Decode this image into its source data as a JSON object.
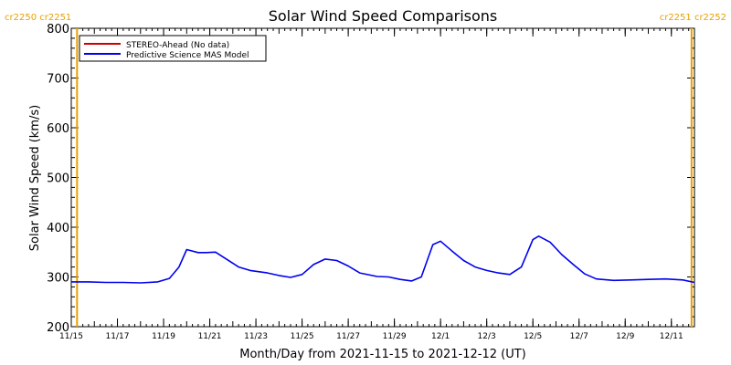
{
  "chart_data": {
    "type": "line",
    "title": "Solar Wind Speed Comparisons",
    "xlabel": "Month/Day from 2021-11-15 to 2021-12-12 (UT)",
    "ylabel": "Solar Wind Speed (km/s)",
    "ylim": [
      200,
      800
    ],
    "yticks": [
      200,
      300,
      400,
      500,
      600,
      700,
      800
    ],
    "xlim": [
      "2021-11-15",
      "2021-12-12"
    ],
    "xticks": [
      {
        "date": "2021-11-15",
        "label": "11/15"
      },
      {
        "date": "2021-11-17",
        "label": "11/17"
      },
      {
        "date": "2021-11-19",
        "label": "11/19"
      },
      {
        "date": "2021-11-21",
        "label": "11/21"
      },
      {
        "date": "2021-11-23",
        "label": "11/23"
      },
      {
        "date": "2021-11-25",
        "label": "11/25"
      },
      {
        "date": "2021-11-27",
        "label": "11/27"
      },
      {
        "date": "2021-11-29",
        "label": "11/29"
      },
      {
        "date": "2021-12-01",
        "label": "12/1"
      },
      {
        "date": "2021-12-03",
        "label": "12/3"
      },
      {
        "date": "2021-12-05",
        "label": "12/5"
      },
      {
        "date": "2021-12-07",
        "label": "12/7"
      },
      {
        "date": "2021-12-09",
        "label": "12/9"
      },
      {
        "date": "2021-12-11",
        "label": "12/11"
      }
    ],
    "legend_position": "top-left",
    "series": [
      {
        "name": "STEREO-Ahead (No data)",
        "color": "#cc0000",
        "x": [],
        "values": []
      },
      {
        "name": "Predictive Science MAS Model",
        "color": "#0000ee",
        "x": [
          "2021-11-15 00:00",
          "2021-11-15 18:00",
          "2021-11-16 12:00",
          "2021-11-17 06:00",
          "2021-11-18 00:00",
          "2021-11-18 18:00",
          "2021-11-19 06:00",
          "2021-11-19 16:00",
          "2021-11-20 00:00",
          "2021-11-20 12:00",
          "2021-11-20 20:00",
          "2021-11-21 06:00",
          "2021-11-21 18:00",
          "2021-11-22 06:00",
          "2021-11-22 18:00",
          "2021-11-23 12:00",
          "2021-11-24 00:00",
          "2021-11-24 12:00",
          "2021-11-25 00:00",
          "2021-11-25 12:00",
          "2021-11-26 00:00",
          "2021-11-26 12:00",
          "2021-11-27 00:00",
          "2021-11-27 12:00",
          "2021-11-28 06:00",
          "2021-11-28 18:00",
          "2021-11-29 06:00",
          "2021-11-29 18:00",
          "2021-11-30 04:00",
          "2021-11-30 16:00",
          "2021-12-01 00:00",
          "2021-12-01 12:00",
          "2021-12-02 00:00",
          "2021-12-02 12:00",
          "2021-12-03 00:00",
          "2021-12-03 12:00",
          "2021-12-04 00:00",
          "2021-12-04 12:00",
          "2021-12-05 00:00",
          "2021-12-05 06:00",
          "2021-12-05 18:00",
          "2021-12-06 06:00",
          "2021-12-06 18:00",
          "2021-12-07 06:00",
          "2021-12-07 18:00",
          "2021-12-08 12:00",
          "2021-12-09 06:00",
          "2021-12-10 00:00",
          "2021-12-10 18:00",
          "2021-12-11 12:00",
          "2021-12-12 00:00"
        ],
        "values": [
          290,
          290,
          289,
          289,
          288,
          290,
          297,
          320,
          355,
          349,
          349,
          350,
          335,
          320,
          313,
          308,
          303,
          299,
          305,
          325,
          336,
          333,
          322,
          308,
          301,
          300,
          295,
          292,
          300,
          365,
          372,
          352,
          333,
          320,
          313,
          308,
          305,
          320,
          375,
          382,
          370,
          345,
          325,
          306,
          296,
          293,
          294,
          295,
          296,
          294,
          289
        ]
      }
    ],
    "carrington_markers": [
      {
        "date": "2021-11-15 06:00",
        "label": "cr2250 cr2251",
        "side": "left",
        "color": "#e8a000"
      },
      {
        "date": "2021-12-11 21:00",
        "label": "cr2251 cr2252",
        "side": "right",
        "color": "#e8a000"
      }
    ]
  }
}
